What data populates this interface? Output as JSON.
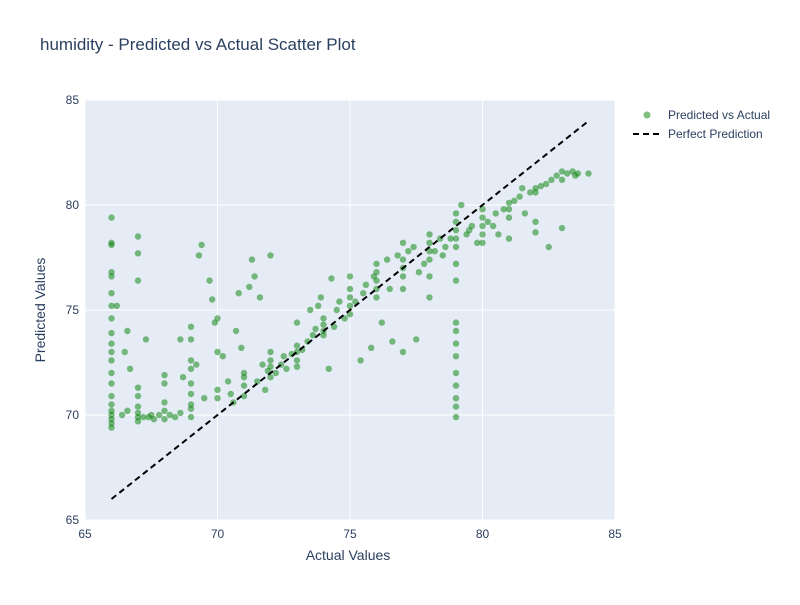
{
  "chart_data": {
    "type": "scatter",
    "title": "humidity - Predicted vs Actual Scatter Plot",
    "xlabel": "Actual Values",
    "ylabel": "Predicted Values",
    "xlim": [
      65,
      85
    ],
    "ylim": [
      65,
      85
    ],
    "xticks": [
      65,
      70,
      75,
      80,
      85
    ],
    "yticks": [
      65,
      70,
      75,
      80,
      85
    ],
    "grid": true,
    "legend_position": "top-right",
    "colors": {
      "plot_bg": "#e5ecf6",
      "grid": "#ffffff",
      "points": "#008000",
      "line": "#000000",
      "text": "#2a3f5f"
    },
    "series": [
      {
        "name": "Predicted vs Actual",
        "mode": "markers",
        "points": [
          [
            66,
            69.4
          ],
          [
            66,
            69.6
          ],
          [
            66,
            69.8
          ],
          [
            66,
            70.0
          ],
          [
            66,
            70.2
          ],
          [
            66,
            70.5
          ],
          [
            66,
            70.9
          ],
          [
            66,
            71.5
          ],
          [
            66,
            72.0
          ],
          [
            66,
            72.6
          ],
          [
            66,
            73.0
          ],
          [
            66,
            73.4
          ],
          [
            66,
            73.9
          ],
          [
            66,
            74.6
          ],
          [
            66,
            75.2
          ],
          [
            66,
            75.8
          ],
          [
            66,
            76.6
          ],
          [
            66,
            76.8
          ],
          [
            66,
            78.1
          ],
          [
            66,
            78.2
          ],
          [
            66,
            79.4
          ],
          [
            66.2,
            75.2
          ],
          [
            66.4,
            70.0
          ],
          [
            66.5,
            73.0
          ],
          [
            66.6,
            74.0
          ],
          [
            66.6,
            70.2
          ],
          [
            66.7,
            72.2
          ],
          [
            67,
            69.7
          ],
          [
            67,
            69.9
          ],
          [
            67,
            70.1
          ],
          [
            67,
            70.4
          ],
          [
            67,
            70.9
          ],
          [
            67,
            71.3
          ],
          [
            67,
            76.4
          ],
          [
            67,
            77.7
          ],
          [
            67,
            78.5
          ],
          [
            67.2,
            69.9
          ],
          [
            67.4,
            69.9
          ],
          [
            67.5,
            70.0
          ],
          [
            67.3,
            73.6
          ],
          [
            67.6,
            69.8
          ],
          [
            67.8,
            70.0
          ],
          [
            68,
            69.8
          ],
          [
            68,
            70.2
          ],
          [
            68,
            70.6
          ],
          [
            68,
            71.5
          ],
          [
            68,
            71.9
          ],
          [
            68.2,
            70.0
          ],
          [
            68.4,
            69.9
          ],
          [
            68.6,
            70.1
          ],
          [
            68.6,
            73.6
          ],
          [
            68.7,
            71.8
          ],
          [
            69,
            69.9
          ],
          [
            69,
            70.3
          ],
          [
            69,
            70.5
          ],
          [
            69,
            71.0
          ],
          [
            69,
            71.5
          ],
          [
            69,
            72.2
          ],
          [
            69,
            72.6
          ],
          [
            69,
            73.6
          ],
          [
            69,
            74.2
          ],
          [
            69.3,
            77.6
          ],
          [
            69.4,
            78.1
          ],
          [
            69.2,
            72.4
          ],
          [
            69.5,
            70.8
          ],
          [
            69.7,
            76.4
          ],
          [
            69.8,
            75.5
          ],
          [
            69.9,
            74.4
          ],
          [
            70,
            74.6
          ],
          [
            70,
            73.0
          ],
          [
            70,
            71.2
          ],
          [
            70,
            70.8
          ],
          [
            70.2,
            72.8
          ],
          [
            70.4,
            71.6
          ],
          [
            70.5,
            71.0
          ],
          [
            70.6,
            70.6
          ],
          [
            70.7,
            74.0
          ],
          [
            70.8,
            75.8
          ],
          [
            70.9,
            73.2
          ],
          [
            71,
            71.4
          ],
          [
            71,
            71.8
          ],
          [
            71,
            72.0
          ],
          [
            71,
            70.9
          ],
          [
            71.2,
            76.1
          ],
          [
            71.3,
            77.4
          ],
          [
            71.4,
            76.6
          ],
          [
            71.5,
            71.6
          ],
          [
            71.6,
            75.6
          ],
          [
            71.7,
            72.4
          ],
          [
            71.8,
            71.2
          ],
          [
            71.9,
            72.1
          ],
          [
            72,
            77.6
          ],
          [
            72,
            71.8
          ],
          [
            72,
            72.3
          ],
          [
            72,
            72.6
          ],
          [
            72,
            73.0
          ],
          [
            72.2,
            72.0
          ],
          [
            72.4,
            72.4
          ],
          [
            72.5,
            72.8
          ],
          [
            72.6,
            72.2
          ],
          [
            72.8,
            72.9
          ],
          [
            73,
            72.3
          ],
          [
            73,
            72.6
          ],
          [
            73,
            73.0
          ],
          [
            73,
            73.3
          ],
          [
            73,
            74.4
          ],
          [
            73.2,
            73.1
          ],
          [
            73.4,
            73.5
          ],
          [
            73.5,
            75.0
          ],
          [
            73.6,
            73.8
          ],
          [
            73.7,
            74.1
          ],
          [
            73.8,
            75.2
          ],
          [
            73.9,
            75.6
          ],
          [
            74,
            73.8
          ],
          [
            74,
            74.0
          ],
          [
            74,
            74.3
          ],
          [
            74,
            74.6
          ],
          [
            74.2,
            72.2
          ],
          [
            74.3,
            76.5
          ],
          [
            74.4,
            74.2
          ],
          [
            74.5,
            75.0
          ],
          [
            74.6,
            75.4
          ],
          [
            74.8,
            74.6
          ],
          [
            75,
            74.8
          ],
          [
            75,
            75.2
          ],
          [
            75,
            75.6
          ],
          [
            75,
            76.0
          ],
          [
            75,
            76.6
          ],
          [
            75.2,
            75.4
          ],
          [
            75.4,
            72.6
          ],
          [
            75.5,
            75.8
          ],
          [
            75.6,
            76.2
          ],
          [
            75.8,
            73.2
          ],
          [
            75.9,
            76.6
          ],
          [
            76,
            76.4
          ],
          [
            76,
            76.8
          ],
          [
            76,
            77.2
          ],
          [
            76,
            75.6
          ],
          [
            76,
            76.0
          ],
          [
            76.2,
            74.4
          ],
          [
            76.4,
            77.4
          ],
          [
            76.5,
            76.0
          ],
          [
            76.6,
            73.5
          ],
          [
            76.8,
            77.6
          ],
          [
            77,
            76.6
          ],
          [
            77,
            77.0
          ],
          [
            77,
            77.4
          ],
          [
            77,
            78.2
          ],
          [
            77,
            76.0
          ],
          [
            77,
            73.0
          ],
          [
            77.2,
            77.8
          ],
          [
            77.4,
            78.0
          ],
          [
            77.5,
            73.6
          ],
          [
            77.6,
            76.8
          ],
          [
            77.8,
            77.2
          ],
          [
            78,
            77.4
          ],
          [
            78,
            77.8
          ],
          [
            78,
            78.2
          ],
          [
            78,
            78.6
          ],
          [
            78,
            76.6
          ],
          [
            78,
            75.6
          ],
          [
            78.2,
            77.8
          ],
          [
            78.4,
            78.4
          ],
          [
            78.5,
            77.6
          ],
          [
            78.6,
            78.0
          ],
          [
            78.8,
            78.4
          ],
          [
            79,
            78.0
          ],
          [
            79,
            78.4
          ],
          [
            79,
            78.8
          ],
          [
            79,
            79.2
          ],
          [
            79,
            79.6
          ],
          [
            79,
            77.2
          ],
          [
            79,
            76.4
          ],
          [
            79,
            74.4
          ],
          [
            79,
            74.0
          ],
          [
            79,
            73.4
          ],
          [
            79,
            72.8
          ],
          [
            79,
            72.0
          ],
          [
            79,
            71.4
          ],
          [
            79,
            70.8
          ],
          [
            79,
            70.4
          ],
          [
            79,
            69.9
          ],
          [
            79.2,
            80.0
          ],
          [
            79.4,
            78.6
          ],
          [
            79.5,
            78.8
          ],
          [
            79.6,
            79.0
          ],
          [
            79.8,
            78.2
          ],
          [
            80,
            78.6
          ],
          [
            80,
            79.0
          ],
          [
            80,
            79.4
          ],
          [
            80,
            79.8
          ],
          [
            80,
            78.2
          ],
          [
            80.2,
            79.2
          ],
          [
            80.4,
            79.0
          ],
          [
            80.5,
            79.6
          ],
          [
            80.6,
            78.6
          ],
          [
            80.8,
            79.8
          ],
          [
            81,
            79.4
          ],
          [
            81,
            79.8
          ],
          [
            81,
            80.1
          ],
          [
            81,
            78.4
          ],
          [
            81.2,
            80.2
          ],
          [
            81.4,
            80.4
          ],
          [
            81.5,
            80.8
          ],
          [
            81.6,
            79.6
          ],
          [
            81.8,
            80.6
          ],
          [
            82,
            80.8
          ],
          [
            82,
            80.6
          ],
          [
            82,
            79.2
          ],
          [
            82,
            78.7
          ],
          [
            82.2,
            80.9
          ],
          [
            82.4,
            81.0
          ],
          [
            82.5,
            78.0
          ],
          [
            82.6,
            81.2
          ],
          [
            82.8,
            81.4
          ],
          [
            83,
            81.6
          ],
          [
            83,
            81.2
          ],
          [
            83,
            78.9
          ],
          [
            83.2,
            81.5
          ],
          [
            83.4,
            81.6
          ],
          [
            83.5,
            81.4
          ],
          [
            83.6,
            81.5
          ],
          [
            84,
            81.5
          ]
        ]
      },
      {
        "name": "Perfect Prediction",
        "mode": "lines",
        "style": "dashed",
        "x": [
          66,
          84
        ],
        "y": [
          66,
          84
        ]
      }
    ]
  }
}
